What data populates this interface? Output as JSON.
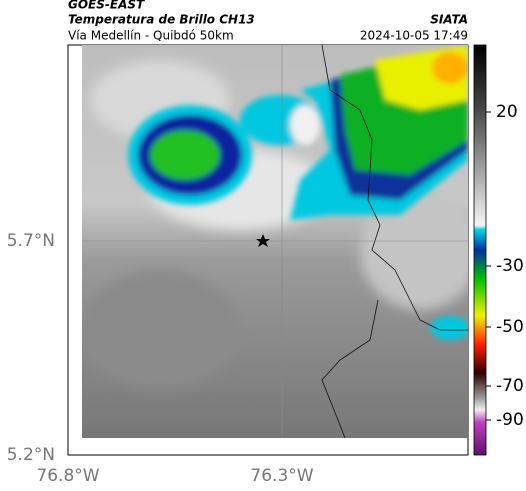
{
  "header": {
    "source": "GOES-EAST",
    "title": "Temperatura de Brillo CH13",
    "subtitle": "Vía Medellín - Quibdó 50km",
    "org": "SIATA",
    "timestamp": "2024-10-05 17:49"
  },
  "axes": {
    "lat_ticks": [
      "5.7°N",
      "5.2°N"
    ],
    "lon_ticks": [
      "76.8°W",
      "76.3°W"
    ]
  },
  "colorbar": {
    "ticks": [
      20,
      -30,
      -50,
      -70,
      -90
    ]
  }
}
